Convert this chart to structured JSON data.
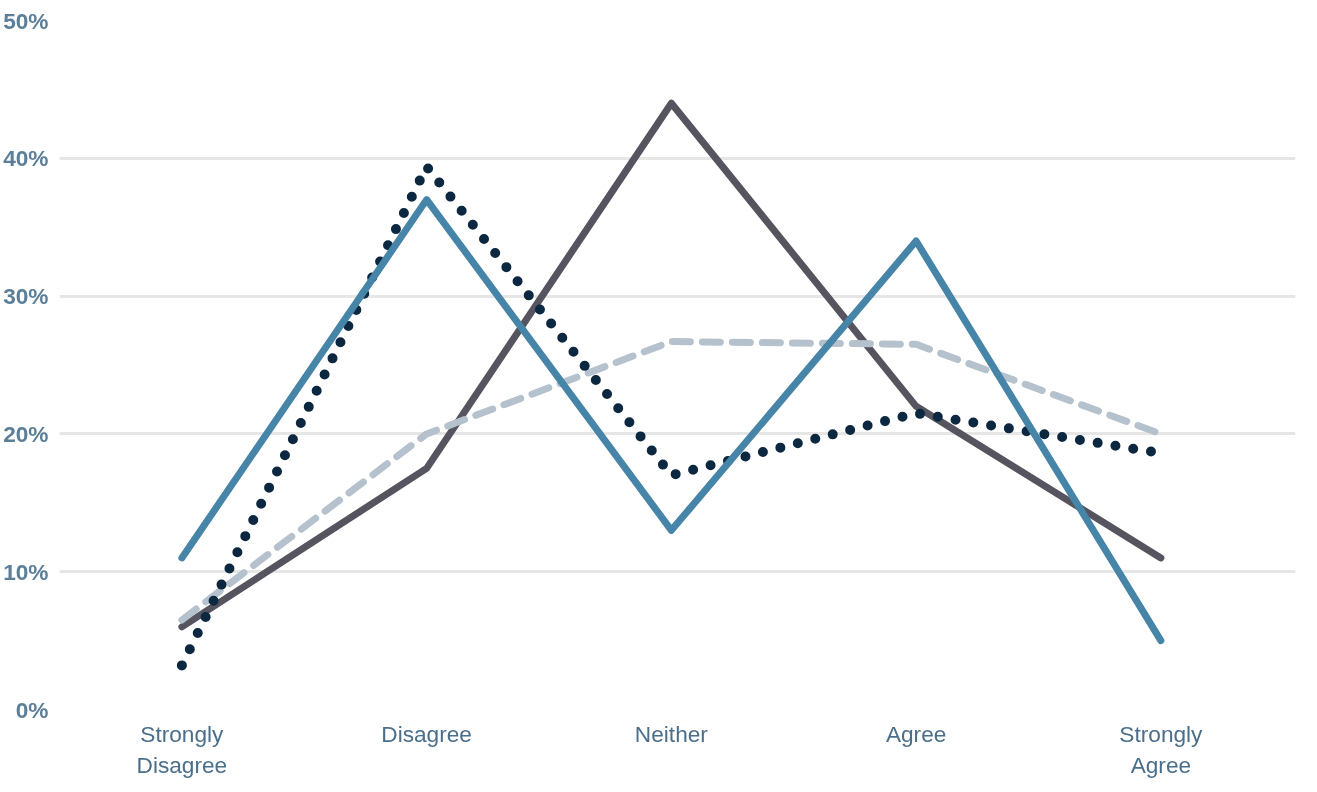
{
  "chart_data": {
    "type": "line",
    "categories": [
      "Strongly\nDisagree",
      "Disagree",
      "Neither",
      "Agree",
      "Strongly\nAgree"
    ],
    "series": [
      {
        "color": "#55545f",
        "line_style": "solid",
        "values": [
          6,
          17.5,
          44,
          22,
          11
        ]
      },
      {
        "color": "#b5c1cc",
        "line_style": "dashed",
        "values": [
          6.5,
          20,
          26.7,
          26.5,
          20
        ]
      },
      {
        "color": "#0c2740",
        "line_style": "dotted",
        "values": [
          3.2,
          39.4,
          17,
          21.5,
          18.6
        ]
      },
      {
        "color": "#4684a8",
        "line_style": "solid",
        "values": [
          11,
          37,
          13,
          34,
          5
        ]
      }
    ],
    "ylim": [
      0,
      50
    ],
    "yticks": [
      {
        "value": 0,
        "label": "0%"
      },
      {
        "value": 10,
        "label": "10%"
      },
      {
        "value": 20,
        "label": "20%"
      },
      {
        "value": 30,
        "label": "30%"
      },
      {
        "value": 40,
        "label": "40%"
      },
      {
        "value": 50,
        "label": "50%"
      }
    ],
    "grid": "y"
  }
}
